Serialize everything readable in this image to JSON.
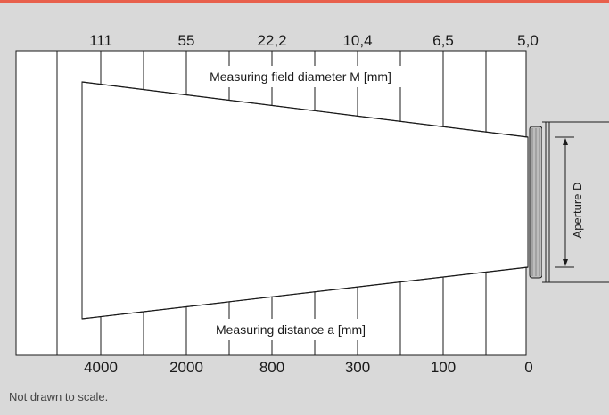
{
  "colors": {
    "accent": "#e8604c",
    "background": "#d9d9d9",
    "panel": "#ffffff",
    "line": "#1a1a1a",
    "lens": "#bdbdbd"
  },
  "top_scale": {
    "label": "Measuring field diameter M [mm]",
    "ticks": [
      "111",
      "55",
      "22,2",
      "10,4",
      "6,5",
      "5,0"
    ]
  },
  "bottom_scale": {
    "label": "Measuring distance a [mm]",
    "ticks": [
      "4000",
      "2000",
      "800",
      "300",
      "100",
      "0"
    ]
  },
  "aperture_label": "Aperture D",
  "footnote": "Not drawn to scale."
}
